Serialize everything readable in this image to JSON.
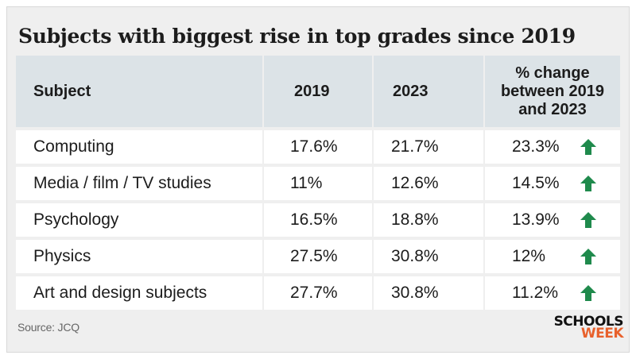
{
  "chart_data": {
    "type": "table",
    "title": "Subjects with biggest rise in top grades since 2019",
    "columns": [
      "Subject",
      "2019",
      "2023",
      "% change between 2019 and 2023"
    ],
    "header_change_lines": [
      "% change",
      "between 2019",
      "and 2023"
    ],
    "rows": [
      {
        "subject": "Computing",
        "y2019": "17.6%",
        "y2023": "21.7%",
        "change": "23.3%"
      },
      {
        "subject": "Media / film / TV studies",
        "y2019": "11%",
        "y2023": "12.6%",
        "change": "14.5%"
      },
      {
        "subject": "Psychology",
        "y2019": "16.5%",
        "y2023": "18.8%",
        "change": "13.9%"
      },
      {
        "subject": "Physics",
        "y2019": "27.5%",
        "y2023": "30.8%",
        "change": "12%"
      },
      {
        "subject": "Art and design subjects",
        "y2019": "27.7%",
        "y2023": "30.8%",
        "change": "11.2%"
      }
    ],
    "indicator_icon": "up-arrow-icon",
    "indicator_color": "#1f8a4c"
  },
  "source": "Source: JCQ",
  "logo": {
    "line1": "SCHOOLS",
    "line2": "WEEK",
    "accent_color": "#e8612c"
  }
}
